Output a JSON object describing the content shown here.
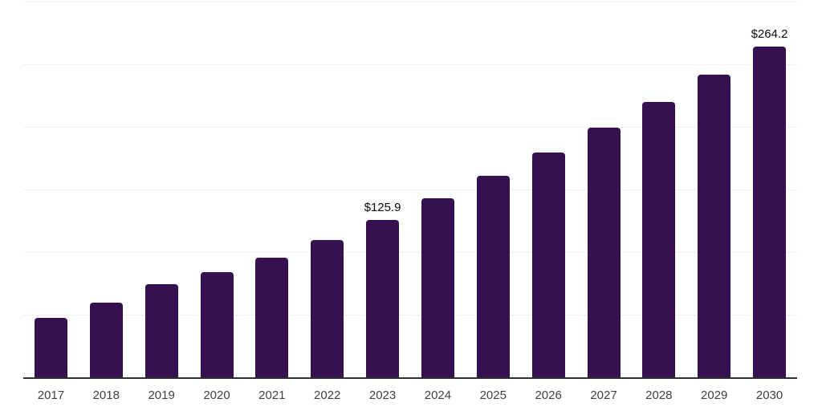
{
  "chart_data": {
    "type": "bar",
    "title": "",
    "xlabel": "",
    "ylabel": "",
    "categories": [
      "2017",
      "2018",
      "2019",
      "2020",
      "2021",
      "2022",
      "2023",
      "2024",
      "2025",
      "2026",
      "2027",
      "2028",
      "2029",
      "2030"
    ],
    "values": [
      48.0,
      60.0,
      74.8,
      84.5,
      96.0,
      110.0,
      125.9,
      143.0,
      161.0,
      179.5,
      199.5,
      220.0,
      241.5,
      264.2
    ],
    "value_labels": {
      "2023": "$125.9",
      "2030": "$264.2"
    },
    "ylim": [
      0,
      300
    ],
    "gridline_step": 50,
    "grid": "horizontal",
    "legend": "none",
    "colors": {
      "bar": "#36114F",
      "gridline": "#F0F0F0",
      "axis_line": "#2E2E2E",
      "tick_label": "#3F3F3F",
      "data_label": "#0A0A0A",
      "background": "#FFFFFF"
    }
  }
}
